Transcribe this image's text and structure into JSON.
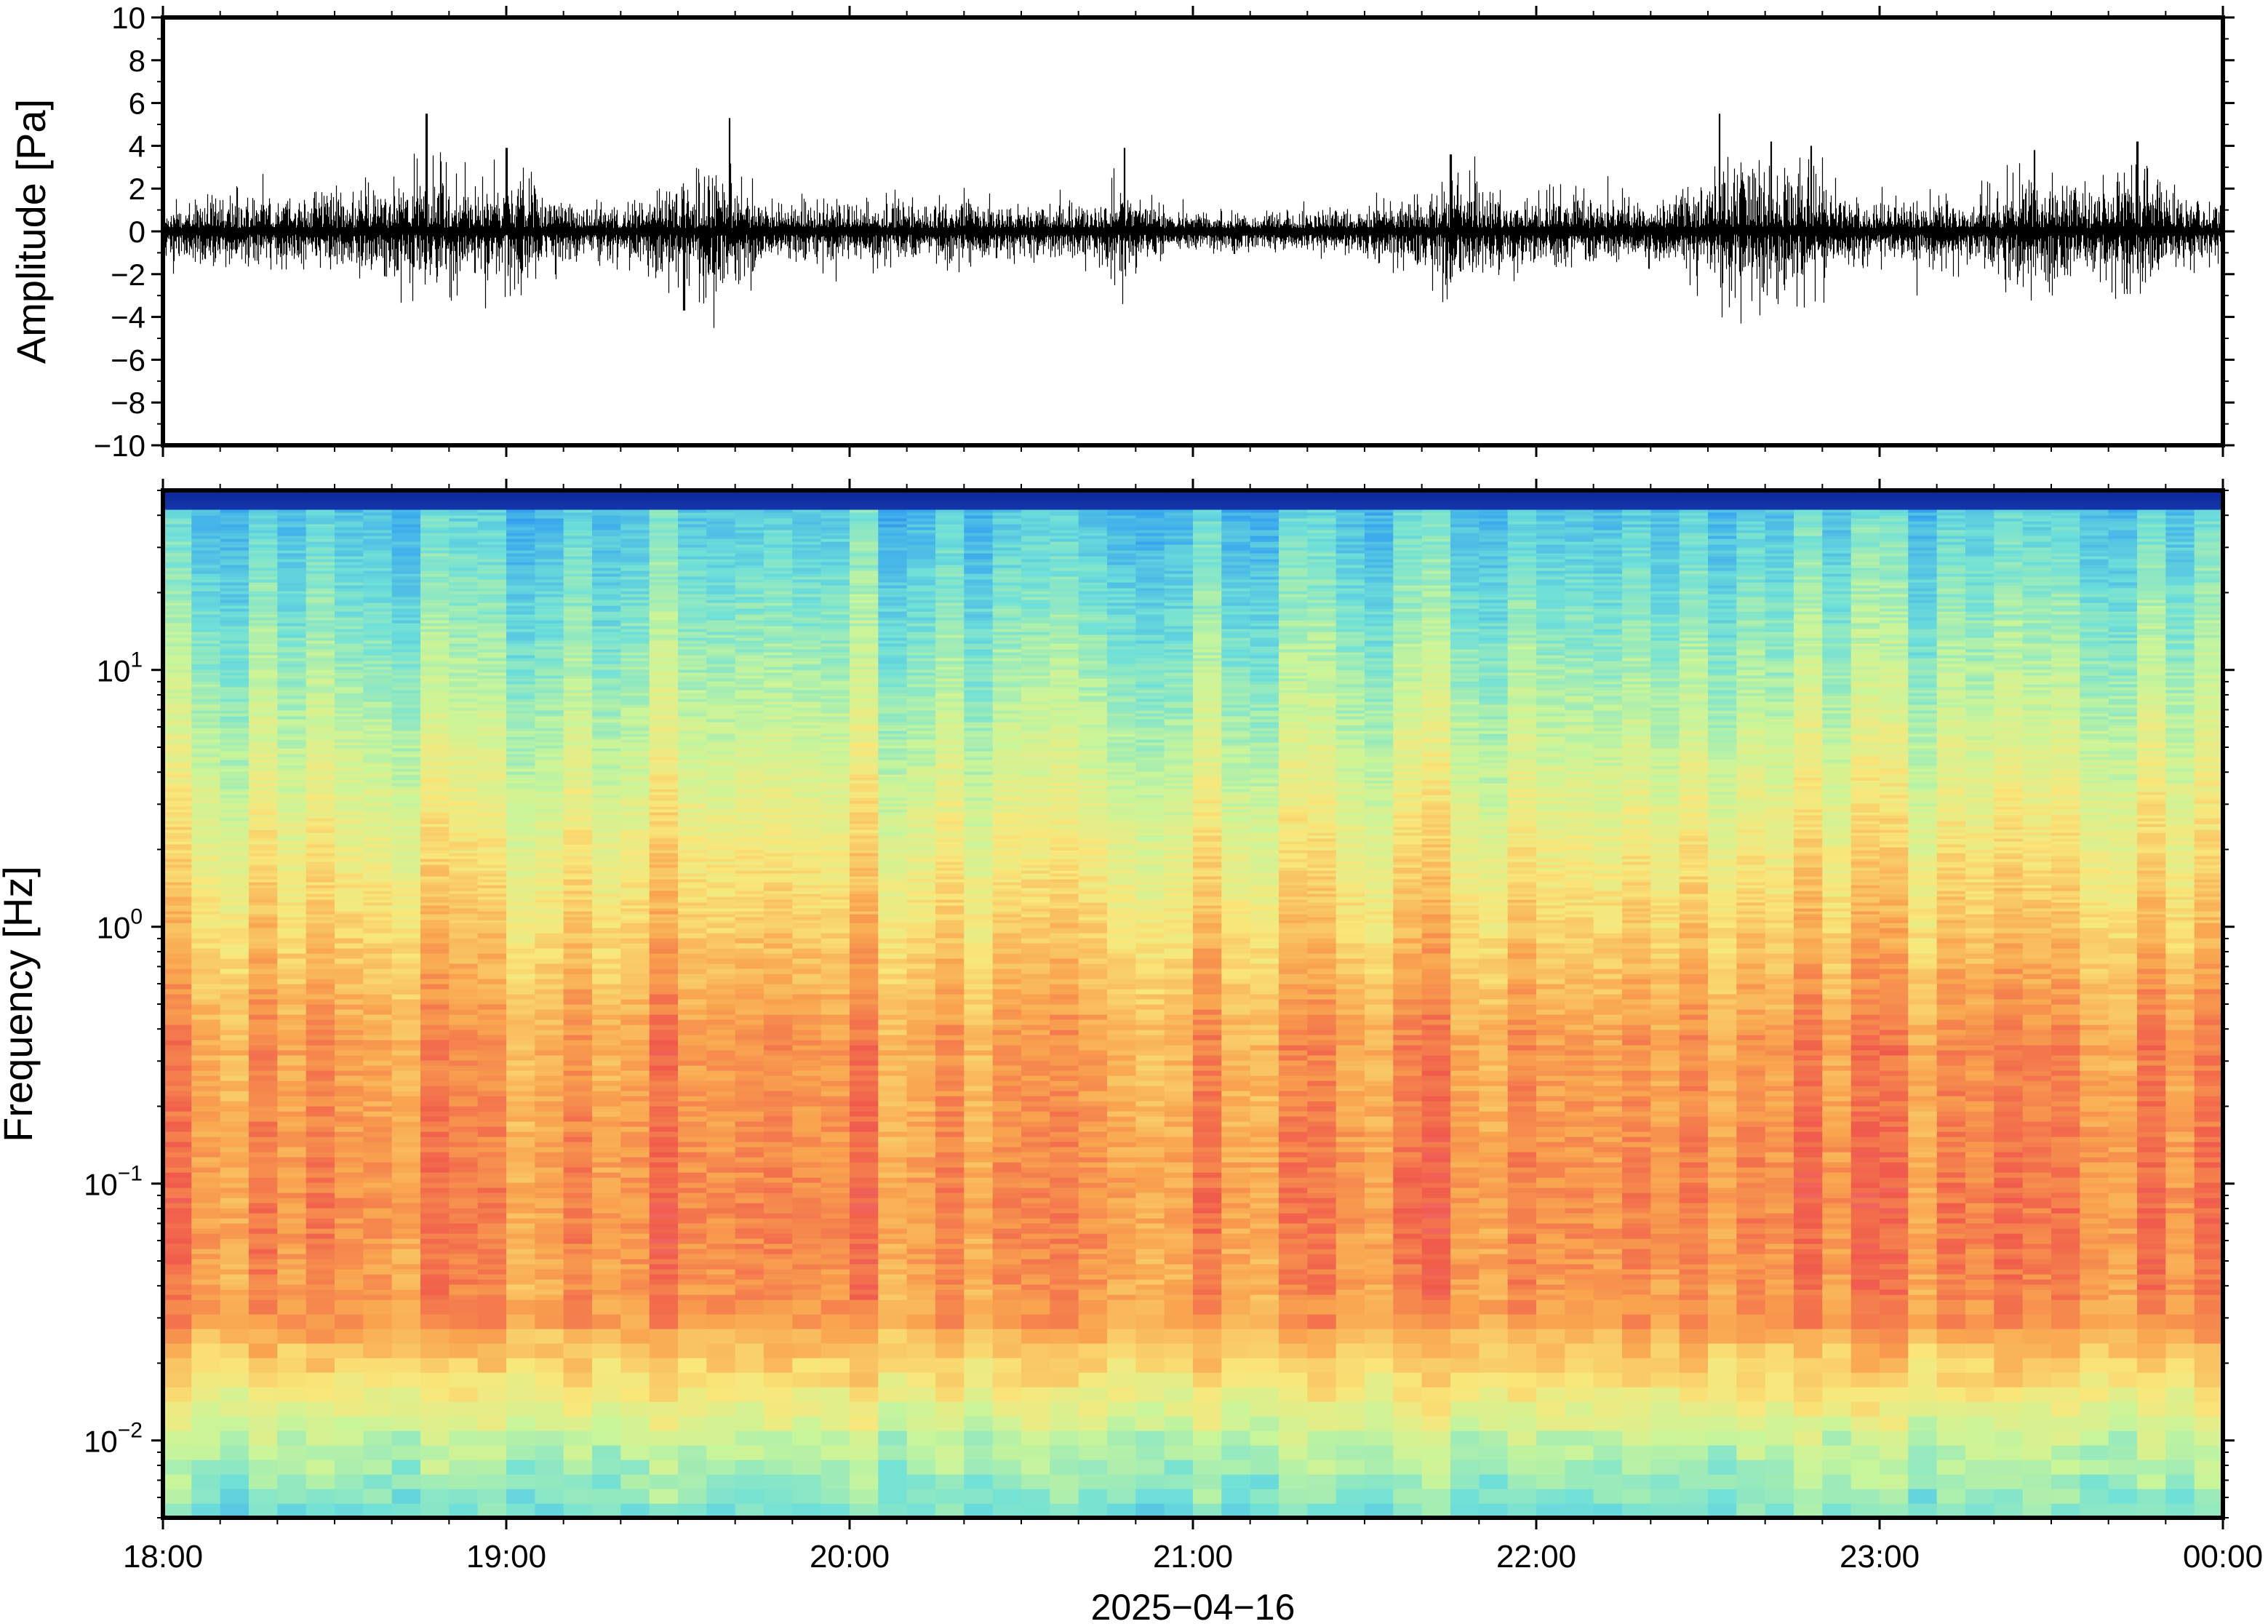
{
  "chart_data": [
    {
      "type": "line",
      "panel": "waveform",
      "title": "",
      "xlabel": "",
      "ylabel": "Amplitude [Pa]",
      "ylim": [
        -10,
        10
      ],
      "yticks": [
        "10",
        "8",
        "6",
        "4",
        "2",
        "0",
        "−2",
        "−4",
        "−6",
        "−8",
        "−10"
      ],
      "xlim": [
        "18:00",
        "00:00"
      ],
      "grid": false,
      "line_color": "#000000",
      "noise_amplitude_typical": 1.2,
      "peaks": [
        {
          "time": "18:46",
          "value": 5.5
        },
        {
          "time": "19:00",
          "value": 3.9
        },
        {
          "time": "19:31",
          "value": -3.7
        },
        {
          "time": "19:39",
          "value": 5.3
        },
        {
          "time": "20:48",
          "value": 3.9
        },
        {
          "time": "21:45",
          "value": 3.6
        },
        {
          "time": "22:32",
          "value": 5.5
        },
        {
          "time": "22:41",
          "value": 4.2
        },
        {
          "time": "22:48",
          "value": 4.0
        },
        {
          "time": "23:27",
          "value": 3.8
        },
        {
          "time": "23:45",
          "value": 4.2
        }
      ]
    },
    {
      "type": "heatmap",
      "panel": "spectrogram",
      "title": "",
      "xlabel": "2025−04−16",
      "ylabel": "Frequency [Hz]",
      "yscale": "log",
      "ylim": [
        0.005,
        50
      ],
      "ytick_values": [
        0.01,
        0.1,
        1,
        10
      ],
      "xticks": [
        "18:00",
        "19:00",
        "20:00",
        "21:00",
        "22:00",
        "23:00",
        "00:00"
      ],
      "time_columns": 72,
      "colormap": [
        "#0a1a8c",
        "#1f5fd6",
        "#38a7ee",
        "#6fe0d8",
        "#c8f59a",
        "#f9e77a",
        "#f9a54f",
        "#f05a4b",
        "#f48ba0"
      ],
      "description_values": {
        "high_freq_power": "low (blue)",
        "mid_freq_power": "moderate (yellow/orange)",
        "low_freq_0.03_0.3Hz_power": "high (red)",
        "very_low_freq_below_0.02Hz_power": "moderate (green/cyan)"
      }
    }
  ]
}
